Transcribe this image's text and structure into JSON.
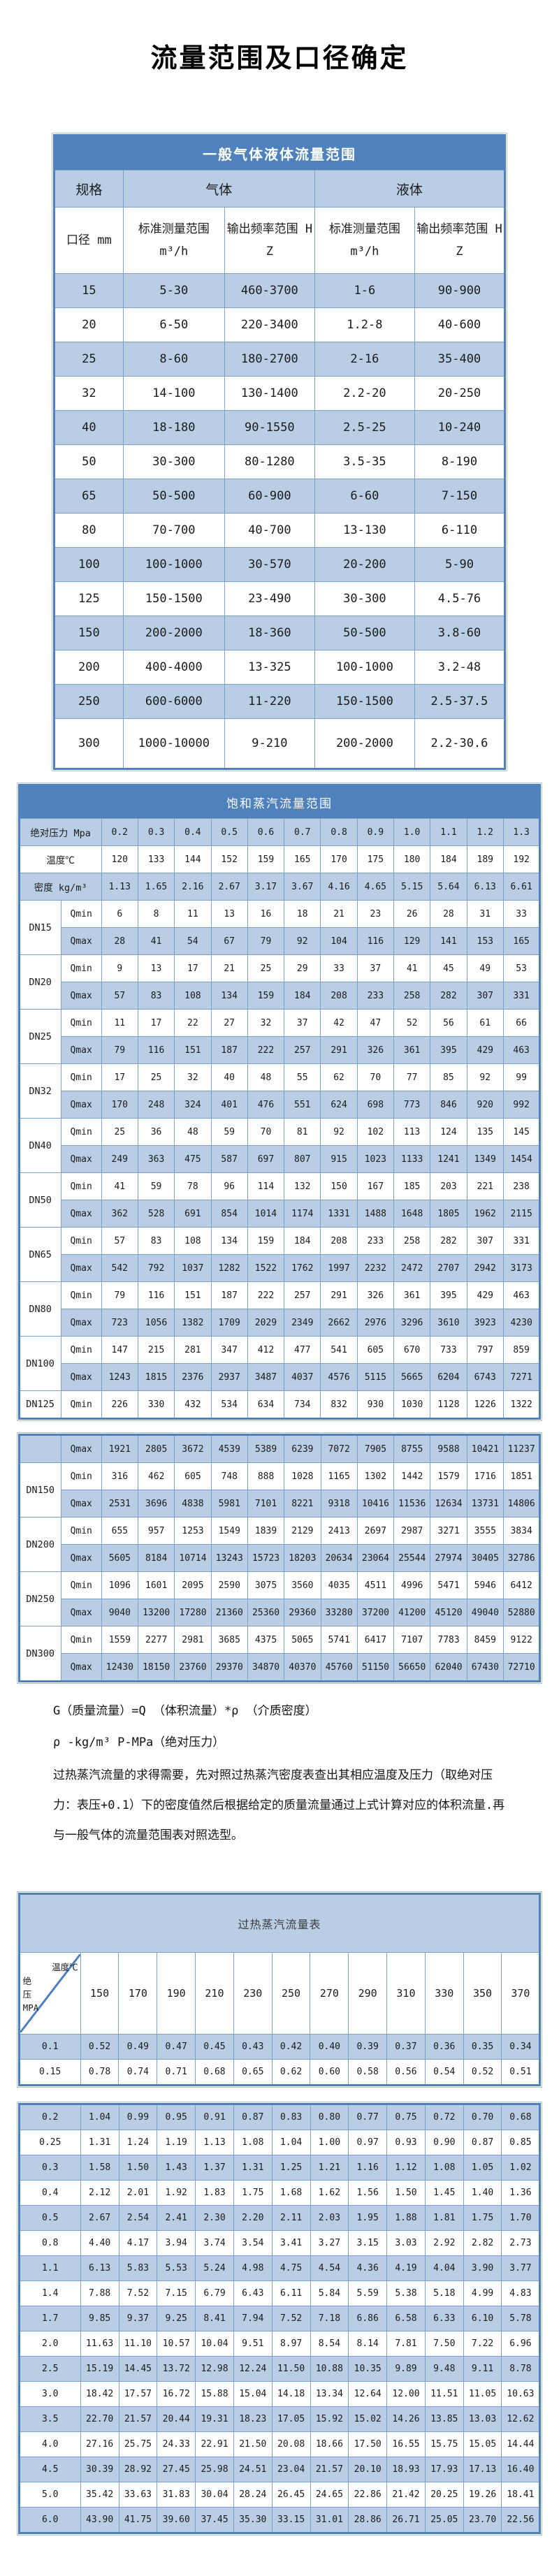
{
  "page_title": "流量范围及口径确定",
  "colors": {
    "header_blue": "#4f81bd",
    "row_blue": "#b9cde4",
    "grid_blue": "#7ba0cc"
  },
  "table1": {
    "title": "一般气体液体流量范围",
    "spec_label": "规格",
    "gas_label": "气体",
    "liquid_label": "液体",
    "diameter_label": "口径 mm",
    "range_label": "标准测量范围",
    "range_unit": "m³/h",
    "freq_label": "输出频率范围 HZ",
    "rows": [
      [
        "15",
        "5-30",
        "460-3700",
        "1-6",
        "90-900"
      ],
      [
        "20",
        "6-50",
        "220-3400",
        "1.2-8",
        "40-600"
      ],
      [
        "25",
        "8-60",
        "180-2700",
        "2-16",
        "35-400"
      ],
      [
        "32",
        "14-100",
        "130-1400",
        "2.2-20",
        "20-250"
      ],
      [
        "40",
        "18-180",
        "90-1550",
        "2.5-25",
        "10-240"
      ],
      [
        "50",
        "30-300",
        "80-1280",
        "3.5-35",
        "8-190"
      ],
      [
        "65",
        "50-500",
        "60-900",
        "6-60",
        "7-150"
      ],
      [
        "80",
        "70-700",
        "40-700",
        "13-130",
        "6-110"
      ],
      [
        "100",
        "100-1000",
        "30-570",
        "20-200",
        "5-90"
      ],
      [
        "125",
        "150-1500",
        "23-490",
        "30-300",
        "4.5-76"
      ],
      [
        "150",
        "200-2000",
        "18-360",
        "50-500",
        "3.8-60"
      ],
      [
        "200",
        "400-4000",
        "13-325",
        "100-1000",
        "3.2-48"
      ],
      [
        "250",
        "600-6000",
        "11-220",
        "150-1500",
        "2.5-37.5"
      ],
      [
        "300",
        "1000-10000",
        "9-210",
        "200-2000",
        "2.2-30.6"
      ]
    ]
  },
  "table2": {
    "title": "饱和蒸汽流量范围",
    "pressure_label": "绝对压力 Mpa",
    "pressures": [
      "0.2",
      "0.3",
      "0.4",
      "0.5",
      "0.6",
      "0.7",
      "0.8",
      "0.9",
      "1.0",
      "1.1",
      "1.2",
      "1.3"
    ],
    "temp_label": "温度℃",
    "temps": [
      "120",
      "133",
      "144",
      "152",
      "159",
      "165",
      "170",
      "175",
      "180",
      "184",
      "189",
      "192"
    ],
    "density_label": "密度 kg/m³",
    "densities": [
      "1.13",
      "1.65",
      "2.16",
      "2.67",
      "3.17",
      "3.67",
      "4.16",
      "4.65",
      "5.15",
      "5.64",
      "6.13",
      "6.61"
    ],
    "qmin_label": "Qmin",
    "qmax_label": "Qmax",
    "groups": [
      {
        "dn": "DN15",
        "qmin": [
          "6",
          "8",
          "11",
          "13",
          "16",
          "18",
          "21",
          "23",
          "26",
          "28",
          "31",
          "33"
        ],
        "qmax": [
          "28",
          "41",
          "54",
          "67",
          "79",
          "92",
          "104",
          "116",
          "129",
          "141",
          "153",
          "165"
        ]
      },
      {
        "dn": "DN20",
        "qmin": [
          "9",
          "13",
          "17",
          "21",
          "25",
          "29",
          "33",
          "37",
          "41",
          "45",
          "49",
          "53"
        ],
        "qmax": [
          "57",
          "83",
          "108",
          "134",
          "159",
          "184",
          "208",
          "233",
          "258",
          "282",
          "307",
          "331"
        ]
      },
      {
        "dn": "DN25",
        "qmin": [
          "11",
          "17",
          "22",
          "27",
          "32",
          "37",
          "42",
          "47",
          "52",
          "56",
          "61",
          "66"
        ],
        "qmax": [
          "79",
          "116",
          "151",
          "187",
          "222",
          "257",
          "291",
          "326",
          "361",
          "395",
          "429",
          "463"
        ]
      },
      {
        "dn": "DN32",
        "qmin": [
          "17",
          "25",
          "32",
          "40",
          "48",
          "55",
          "62",
          "70",
          "77",
          "85",
          "92",
          "99"
        ],
        "qmax": [
          "170",
          "248",
          "324",
          "401",
          "476",
          "551",
          "624",
          "698",
          "773",
          "846",
          "920",
          "992"
        ]
      },
      {
        "dn": "DN40",
        "qmin": [
          "25",
          "36",
          "48",
          "59",
          "70",
          "81",
          "92",
          "102",
          "113",
          "124",
          "135",
          "145"
        ],
        "qmax": [
          "249",
          "363",
          "475",
          "587",
          "697",
          "807",
          "915",
          "1023",
          "1133",
          "1241",
          "1349",
          "1454"
        ]
      },
      {
        "dn": "DN50",
        "qmin": [
          "41",
          "59",
          "78",
          "96",
          "114",
          "132",
          "150",
          "167",
          "185",
          "203",
          "221",
          "238"
        ],
        "qmax": [
          "362",
          "528",
          "691",
          "854",
          "1014",
          "1174",
          "1331",
          "1488",
          "1648",
          "1805",
          "1962",
          "2115"
        ]
      },
      {
        "dn": "DN65",
        "qmin": [
          "57",
          "83",
          "108",
          "134",
          "159",
          "184",
          "208",
          "233",
          "258",
          "282",
          "307",
          "331"
        ],
        "qmax": [
          "542",
          "792",
          "1037",
          "1282",
          "1522",
          "1762",
          "1997",
          "2232",
          "2472",
          "2707",
          "2942",
          "3173"
        ]
      },
      {
        "dn": "DN80",
        "qmin": [
          "79",
          "116",
          "151",
          "187",
          "222",
          "257",
          "291",
          "326",
          "361",
          "395",
          "429",
          "463"
        ],
        "qmax": [
          "723",
          "1056",
          "1382",
          "1709",
          "2029",
          "2349",
          "2662",
          "2976",
          "3296",
          "3610",
          "3923",
          "4230"
        ]
      },
      {
        "dn": "DN100",
        "qmin": [
          "147",
          "215",
          "281",
          "347",
          "412",
          "477",
          "541",
          "605",
          "670",
          "733",
          "797",
          "859"
        ],
        "qmax": [
          "1243",
          "1815",
          "2376",
          "2937",
          "3487",
          "4037",
          "4576",
          "5115",
          "5665",
          "6204",
          "6743",
          "7271"
        ]
      },
      {
        "dn": "DN125",
        "qmin": [
          "226",
          "330",
          "432",
          "534",
          "634",
          "734",
          "832",
          "930",
          "1030",
          "1128",
          "1226",
          "1322"
        ]
      }
    ]
  },
  "table3": {
    "lead_row": {
      "label": "Qmax",
      "values": [
        "1921",
        "2805",
        "3672",
        "4539",
        "5389",
        "6239",
        "7072",
        "7905",
        "8755",
        "9588",
        "10421",
        "11237"
      ]
    },
    "groups": [
      {
        "dn": "DN150",
        "qmin": [
          "316",
          "462",
          "605",
          "748",
          "888",
          "1028",
          "1165",
          "1302",
          "1442",
          "1579",
          "1716",
          "1851"
        ],
        "qmax": [
          "2531",
          "3696",
          "4838",
          "5981",
          "7101",
          "8221",
          "9318",
          "10416",
          "11536",
          "12634",
          "13731",
          "14806"
        ]
      },
      {
        "dn": "DN200",
        "qmin": [
          "655",
          "957",
          "1253",
          "1549",
          "1839",
          "2129",
          "2413",
          "2697",
          "2987",
          "3271",
          "3555",
          "3834"
        ],
        "qmax": [
          "5605",
          "8184",
          "10714",
          "13243",
          "15723",
          "18203",
          "20634",
          "23064",
          "25544",
          "27974",
          "30405",
          "32786"
        ]
      },
      {
        "dn": "DN250",
        "qmin": [
          "1096",
          "1601",
          "2095",
          "2590",
          "3075",
          "3560",
          "4035",
          "4511",
          "4996",
          "5471",
          "5946",
          "6412"
        ],
        "qmax": [
          "9040",
          "13200",
          "17280",
          "21360",
          "25360",
          "29360",
          "33280",
          "37200",
          "41200",
          "45120",
          "49040",
          "52880"
        ]
      },
      {
        "dn": "DN300",
        "qmin": [
          "1559",
          "2277",
          "2981",
          "3685",
          "4375",
          "5065",
          "5741",
          "6417",
          "7107",
          "7783",
          "8459",
          "9122"
        ],
        "qmax": [
          "12430",
          "18150",
          "23760",
          "29370",
          "34870",
          "40370",
          "45760",
          "51150",
          "56650",
          "62040",
          "67430",
          "72710"
        ]
      }
    ]
  },
  "notes": [
    "G（质量流量）=Q （体积流量）*ρ （介质密度）",
    "ρ -kg/m³ P-MPa（绝对压力）",
    "过热蒸汽流量的求得需要，先对照过热蒸汽密度表查出其相应温度及压力（取绝对压力：表压+0.1）下的密度值然后根据给定的质量流量通过上式计算对应的体积流量.再与一般气体的流量范围表对照选型。"
  ],
  "table4": {
    "title": "过热蒸汽流量表",
    "corner_top": "温度℃",
    "corner_side_lines": [
      "绝",
      "压",
      "MPA"
    ],
    "temps": [
      "150",
      "170",
      "190",
      "210",
      "230",
      "250",
      "270",
      "290",
      "310",
      "330",
      "350",
      "370"
    ],
    "block1": [
      {
        "p": "0.1",
        "v": [
          "0.52",
          "0.49",
          "0.47",
          "0.45",
          "0.43",
          "0.42",
          "0.40",
          "0.39",
          "0.37",
          "0.36",
          "0.35",
          "0.34"
        ]
      },
      {
        "p": "0.15",
        "v": [
          "0.78",
          "0.74",
          "0.71",
          "0.68",
          "0.65",
          "0.62",
          "0.60",
          "0.58",
          "0.56",
          "0.54",
          "0.52",
          "0.51"
        ]
      }
    ],
    "block2": [
      {
        "p": "0.2",
        "v": [
          "1.04",
          "0.99",
          "0.95",
          "0.91",
          "0.87",
          "0.83",
          "0.80",
          "0.77",
          "0.75",
          "0.72",
          "0.70",
          "0.68"
        ]
      },
      {
        "p": "0.25",
        "v": [
          "1.31",
          "1.24",
          "1.19",
          "1.13",
          "1.08",
          "1.04",
          "1.00",
          "0.97",
          "0.93",
          "0.90",
          "0.87",
          "0.85"
        ]
      },
      {
        "p": "0.3",
        "v": [
          "1.58",
          "1.50",
          "1.43",
          "1.37",
          "1.31",
          "1.25",
          "1.21",
          "1.16",
          "1.12",
          "1.08",
          "1.05",
          "1.02"
        ]
      },
      {
        "p": "0.4",
        "v": [
          "2.12",
          "2.01",
          "1.92",
          "1.83",
          "1.75",
          "1.68",
          "1.62",
          "1.56",
          "1.50",
          "1.45",
          "1.40",
          "1.36"
        ]
      },
      {
        "p": "0.5",
        "v": [
          "2.67",
          "2.54",
          "2.41",
          "2.30",
          "2.20",
          "2.11",
          "2.03",
          "1.95",
          "1.88",
          "1.81",
          "1.75",
          "1.70"
        ]
      },
      {
        "p": "0.8",
        "v": [
          "4.40",
          "4.17",
          "3.94",
          "3.74",
          "3.54",
          "3.41",
          "3.27",
          "3.15",
          "3.03",
          "2.92",
          "2.82",
          "2.73"
        ]
      },
      {
        "p": "1.1",
        "v": [
          "6.13",
          "5.83",
          "5.53",
          "5.24",
          "4.98",
          "4.75",
          "4.54",
          "4.36",
          "4.19",
          "4.04",
          "3.90",
          "3.77"
        ]
      },
      {
        "p": "1.4",
        "v": [
          "7.88",
          "7.52",
          "7.15",
          "6.79",
          "6.43",
          "6.11",
          "5.84",
          "5.59",
          "5.38",
          "5.18",
          "4.99",
          "4.83"
        ]
      },
      {
        "p": "1.7",
        "v": [
          "9.85",
          "9.37",
          "9.25",
          "8.41",
          "7.94",
          "7.52",
          "7.18",
          "6.86",
          "6.58",
          "6.33",
          "6.10",
          "5.78"
        ]
      },
      {
        "p": "2.0",
        "v": [
          "11.63",
          "11.10",
          "10.57",
          "10.04",
          "9.51",
          "8.97",
          "8.54",
          "8.14",
          "7.81",
          "7.50",
          "7.22",
          "6.96"
        ]
      },
      {
        "p": "2.5",
        "v": [
          "15.19",
          "14.45",
          "13.72",
          "12.98",
          "12.24",
          "11.50",
          "10.88",
          "10.35",
          "9.89",
          "9.48",
          "9.11",
          "8.78"
        ]
      },
      {
        "p": "3.0",
        "v": [
          "18.42",
          "17.57",
          "16.72",
          "15.88",
          "15.04",
          "14.18",
          "13.34",
          "12.64",
          "12.00",
          "11.51",
          "11.05",
          "10.63"
        ]
      },
      {
        "p": "3.5",
        "v": [
          "22.70",
          "21.57",
          "20.44",
          "19.31",
          "18.23",
          "17.05",
          "15.92",
          "15.02",
          "14.26",
          "13.85",
          "13.03",
          "12.62"
        ]
      },
      {
        "p": "4.0",
        "v": [
          "27.16",
          "25.75",
          "24.33",
          "22.91",
          "21.50",
          "20.08",
          "18.66",
          "17.50",
          "16.55",
          "15.75",
          "15.05",
          "14.44"
        ]
      },
      {
        "p": "4.5",
        "v": [
          "30.39",
          "28.92",
          "27.45",
          "25.98",
          "24.51",
          "23.04",
          "21.57",
          "20.10",
          "18.93",
          "17.93",
          "17.13",
          "16.40"
        ]
      },
      {
        "p": "5.0",
        "v": [
          "35.42",
          "33.63",
          "31.83",
          "30.04",
          "28.24",
          "26.45",
          "24.65",
          "22.86",
          "21.42",
          "20.25",
          "19.26",
          "18.41"
        ]
      },
      {
        "p": "6.0",
        "v": [
          "43.90",
          "41.75",
          "39.60",
          "37.45",
          "35.30",
          "33.15",
          "31.01",
          "28.86",
          "26.71",
          "25.05",
          "23.70",
          "22.56"
        ]
      }
    ]
  }
}
